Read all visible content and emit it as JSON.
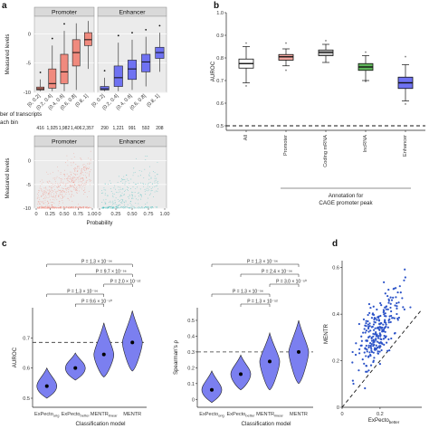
{
  "panel_letters": {
    "a": "a",
    "b": "b",
    "c": "c",
    "d": "d"
  },
  "colors": {
    "promoter": "#f08a7e",
    "enhancer": "#6f72f2",
    "violet": "#7b7ff0",
    "scatter_blue": "#2d54c8",
    "lncrna": "#5fb55a"
  },
  "chart_data": [
    {
      "id": "a-top",
      "type": "box",
      "ylabel": "Measured levels",
      "facets": [
        "Promoter",
        "Enhancer"
      ],
      "categories": [
        "[0, 0.2]",
        "(0.2, 0.4]",
        "(0.4, 0.6]",
        "(0.6, 0.8]",
        "(0.8, 1]"
      ],
      "ylim": [
        -10,
        3
      ],
      "yticks": [
        -10,
        -5,
        0
      ],
      "series": [
        {
          "name": "Promoter",
          "boxes": [
            {
              "whislo": -9.8,
              "q1": -9.6,
              "med": -9.4,
              "q3": -9.1,
              "whishi": -7.8
            },
            {
              "whislo": -9.8,
              "q1": -9.3,
              "med": -8.5,
              "q3": -6.0,
              "whishi": -2.0
            },
            {
              "whislo": -9.8,
              "q1": -8.5,
              "med": -6.5,
              "q3": -3.5,
              "whishi": 0.5
            },
            {
              "whislo": -9.6,
              "q1": -5.5,
              "med": -3.2,
              "q3": -1.0,
              "whishi": 1.8
            },
            {
              "whislo": -6.0,
              "q1": -2.0,
              "med": -1.0,
              "q3": 0.2,
              "whishi": 2.2
            }
          ]
        },
        {
          "name": "Enhancer",
          "boxes": [
            {
              "whislo": -9.8,
              "q1": -9.6,
              "med": -9.4,
              "q3": -9.0,
              "whishi": -7.5
            },
            {
              "whislo": -9.8,
              "q1": -9.0,
              "med": -7.5,
              "q3": -5.5,
              "whishi": -1.5
            },
            {
              "whislo": -9.6,
              "q1": -7.8,
              "med": -6.0,
              "q3": -4.5,
              "whishi": -1.0
            },
            {
              "whislo": -9.0,
              "q1": -6.5,
              "med": -4.8,
              "q3": -3.5,
              "whishi": -0.5
            },
            {
              "whislo": -6.5,
              "q1": -4.2,
              "med": -3.2,
              "q3": -2.3,
              "whishi": 0.2
            }
          ]
        }
      ]
    },
    {
      "id": "a-counts",
      "type": "table",
      "title": "ber of transcripts",
      "row_label": "ach bin",
      "series": [
        {
          "name": "Promoter",
          "values": [
            "416",
            "1,925",
            "1,982",
            "1,406",
            "2,357"
          ]
        },
        {
          "name": "Enhancer",
          "values": [
            "290",
            "1,221",
            "991",
            "592",
            "208"
          ]
        }
      ]
    },
    {
      "id": "a-bottom",
      "type": "scatter",
      "ylabel": "Measured levels",
      "xlabel": "Probability",
      "facets": [
        "Promoter",
        "Enhancer"
      ],
      "xlim": [
        0,
        1
      ],
      "xticks": [
        0,
        0.25,
        0.5,
        0.75,
        1.0
      ],
      "xticklabels": [
        "0",
        "0.25",
        "0.50",
        "0.75",
        "1.00"
      ],
      "ylim": [
        -10,
        3
      ],
      "yticks": [
        -10,
        -5,
        0
      ],
      "series": [
        {
          "name": "Promoter",
          "x_range": [
            0.02,
            0.98
          ],
          "y_range": [
            -10,
            2
          ]
        },
        {
          "name": "Enhancer",
          "x_range": [
            0.03,
            0.9
          ],
          "y_range": [
            -10,
            1
          ]
        }
      ]
    },
    {
      "id": "b",
      "type": "box",
      "ylabel": "AUROC",
      "ylim": [
        0.48,
        1.0
      ],
      "yticks": [
        0.5,
        0.6,
        0.7,
        0.8,
        0.9,
        1.0
      ],
      "yticklabels": [
        "0.5",
        "0.6",
        "0.7",
        "0.8",
        "0.9",
        "1.0"
      ],
      "reference_line": 0.5,
      "categories": [
        "All",
        "Promoter",
        "Coding mRNA",
        "lncRNA",
        "Enhancer"
      ],
      "bracket_label": [
        "Annotation for",
        "CAGE promoter peak"
      ],
      "boxes": [
        {
          "whislo": 0.69,
          "q1": 0.755,
          "med": 0.775,
          "q3": 0.795,
          "whishi": 0.85,
          "fliers": [
            0.86,
            0.67
          ]
        },
        {
          "whislo": 0.765,
          "q1": 0.79,
          "med": 0.805,
          "q3": 0.815,
          "whishi": 0.84,
          "fliers": [
            0.86,
            0.74
          ]
        },
        {
          "whislo": 0.78,
          "q1": 0.81,
          "med": 0.825,
          "q3": 0.835,
          "whishi": 0.86,
          "fliers": [
            0.87
          ]
        },
        {
          "whislo": 0.7,
          "q1": 0.745,
          "med": 0.76,
          "q3": 0.775,
          "whishi": 0.81,
          "fliers": [
            0.82,
            0.69
          ]
        },
        {
          "whislo": 0.61,
          "q1": 0.665,
          "med": 0.69,
          "q3": 0.715,
          "whishi": 0.77,
          "fliers": [
            0.8,
            0.59
          ]
        }
      ]
    },
    {
      "id": "c-left",
      "type": "violin",
      "ylabel": "AUROC",
      "xlabel": "Classification model",
      "ylim": [
        0.47,
        0.8
      ],
      "yticks": [
        0.5,
        0.6,
        0.7
      ],
      "yticklabels": [
        "0.5",
        "0.6",
        "0.7"
      ],
      "reference_line": 0.685,
      "categories": [
        "ExPecto_orig",
        "ExPecto_better",
        "MENTR_linear",
        "MENTR"
      ],
      "medians": [
        0.54,
        0.6,
        0.645,
        0.685
      ],
      "spread": [
        [
          0.5,
          0.6
        ],
        [
          0.56,
          0.65
        ],
        [
          0.57,
          0.75
        ],
        [
          0.59,
          0.79
        ]
      ],
      "comparisons": [
        {
          "from": 0,
          "to": 3,
          "label": "P = 1.3 × 10⁻⁵⁶"
        },
        {
          "from": 1,
          "to": 3,
          "label": "P = 9.7 × 10⁻⁵⁶"
        },
        {
          "from": 2,
          "to": 3,
          "label": "P = 2.0 × 10⁻⁵²"
        },
        {
          "from": 0,
          "to": 2,
          "label": "P = 1.3 × 10⁻⁵⁶"
        },
        {
          "from": 1,
          "to": 2,
          "label": "P = 9.6 × 10⁻⁵⁰"
        }
      ]
    },
    {
      "id": "c-right",
      "type": "violin",
      "ylabel": "Spearman's ρ",
      "xlabel": "Classification model",
      "ylim": [
        -0.05,
        0.58
      ],
      "yticks": [
        0,
        0.1,
        0.2,
        0.3,
        0.4,
        0.5
      ],
      "yticklabels": [
        "0",
        "0.1",
        "0.2",
        "0.3",
        "0.4",
        "0.5"
      ],
      "reference_line": 0.3,
      "categories": [
        "ExPecto_orig",
        "ExPecto_better",
        "MENTR_linear",
        "MENTR"
      ],
      "medians": [
        0.06,
        0.16,
        0.24,
        0.3
      ],
      "spread": [
        [
          -0.02,
          0.18
        ],
        [
          0.06,
          0.28
        ],
        [
          0.06,
          0.42
        ],
        [
          0.1,
          0.5
        ]
      ],
      "comparisons": [
        {
          "from": 0,
          "to": 3,
          "label": "P = 1.3 × 10⁻⁵⁶"
        },
        {
          "from": 1,
          "to": 3,
          "label": "P = 2.4 × 10⁻⁵⁶"
        },
        {
          "from": 2,
          "to": 3,
          "label": "P = 3.0 × 10⁻⁵⁰"
        },
        {
          "from": 0,
          "to": 2,
          "label": "P = 1.3 × 10⁻⁵⁶"
        },
        {
          "from": 1,
          "to": 2,
          "label": "P = 1.3 × 10⁻⁵²"
        }
      ]
    },
    {
      "id": "d",
      "type": "scatter",
      "xlabel": "ExPecto_better",
      "ylabel": "MENTR",
      "xlim": [
        0,
        0.42
      ],
      "ylim": [
        0,
        0.63
      ],
      "xticks": [
        0,
        0.2
      ],
      "xticklabels": [
        "0",
        "0.2"
      ],
      "yticks": [
        0,
        0.2,
        0.4,
        0.6
      ],
      "yticklabels": [
        "0",
        "0.2",
        "0.4",
        "0.6"
      ],
      "diagonal": true,
      "cloud": {
        "x_center": 0.19,
        "y_center": 0.33,
        "n": 260
      }
    }
  ]
}
